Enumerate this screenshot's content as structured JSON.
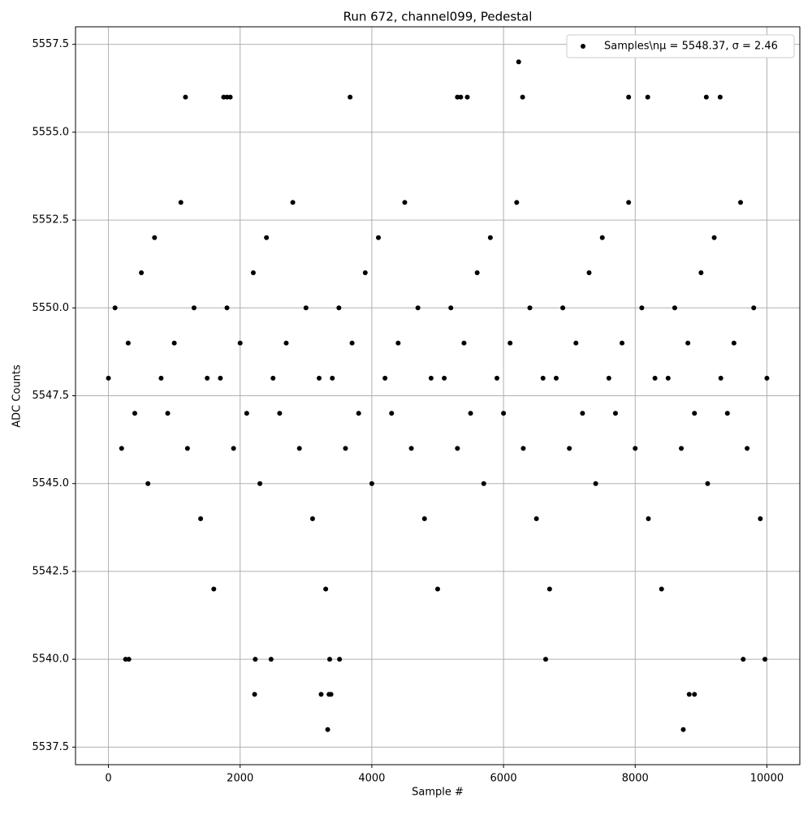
{
  "chart_data": {
    "type": "scatter",
    "title": "Run 672, channel099, Pedestal",
    "x_label": "Sample #",
    "y_label": "ADC Counts",
    "xlim": [
      -500,
      10500
    ],
    "ylim": [
      5537,
      5558
    ],
    "xticks": [
      0,
      2000,
      4000,
      6000,
      8000,
      10000
    ],
    "yticks": [
      5537.5,
      {
        "value": 5540,
        "label": "5540.0"
      },
      5542.5,
      {
        "value": 5545,
        "label": "5545.0"
      },
      5547.5,
      {
        "value": 5550,
        "label": "5550.0"
      },
      5552.5,
      {
        "value": 5555,
        "label": "5555.0"
      },
      5557.5
    ],
    "grid": true,
    "legend": "upper right",
    "series": [
      {
        "name": "Samples\\nμ = 5548.37, σ = 2.46",
        "color": "#000000",
        "x": [
          0,
          100,
          200,
          300,
          400,
          500,
          600,
          700,
          800,
          900,
          1000,
          1100,
          1200,
          1300,
          1400,
          1500,
          1600,
          1700,
          1800,
          1900,
          2000,
          2100,
          2200,
          2300,
          2400,
          2500,
          2600,
          2700,
          2800,
          2900,
          3000,
          3100,
          3200,
          3300,
          3400,
          3500,
          3600,
          3700,
          3800,
          3900,
          4000,
          4100,
          4200,
          4300,
          4400,
          4500,
          4600,
          4700,
          4800,
          4900,
          5000,
          5100,
          5200,
          5300,
          5400,
          5500,
          5600,
          5700,
          5800,
          5900,
          6000,
          6100,
          6200,
          6300,
          6400,
          6500,
          6600,
          6700,
          6800,
          6900,
          7000,
          7100,
          7200,
          7300,
          7400,
          7500,
          7600,
          7700,
          7800,
          7900,
          8000,
          8100,
          8200,
          8300,
          8400,
          8500,
          8600,
          8700,
          8800,
          8900,
          9000,
          9100,
          9200,
          9300,
          9400,
          9500,
          9600,
          9700,
          9800,
          9900,
          10000,
          1170,
          1750,
          1800,
          1850,
          3670,
          5300,
          5350,
          5450,
          6230,
          6290,
          7900,
          8190,
          9080,
          9290,
          2220,
          3230,
          3330,
          3350,
          3380,
          8730,
          8820,
          8900,
          2230,
          2470,
          260,
          310,
          3360,
          3510,
          6640,
          9640,
          9970
        ],
        "values": [
          5548,
          5550,
          5546,
          5549,
          5547,
          5551,
          5545,
          5552,
          5548,
          5547,
          5549,
          5553,
          5546,
          5550,
          5544,
          5548,
          5542,
          5548,
          5550,
          5546,
          5549,
          5547,
          5551,
          5545,
          5552,
          5548,
          5547,
          5549,
          5553,
          5546,
          5550,
          5544,
          5548,
          5542,
          5548,
          5550,
          5546,
          5549,
          5547,
          5551,
          5545,
          5552,
          5548,
          5547,
          5549,
          5553,
          5546,
          5550,
          5544,
          5548,
          5542,
          5548,
          5550,
          5546,
          5549,
          5547,
          5551,
          5545,
          5552,
          5548,
          5547,
          5549,
          5553,
          5546,
          5550,
          5544,
          5548,
          5542,
          5548,
          5550,
          5546,
          5549,
          5547,
          5551,
          5545,
          5552,
          5548,
          5547,
          5549,
          5553,
          5546,
          5550,
          5544,
          5548,
          5542,
          5548,
          5550,
          5546,
          5549,
          5547,
          5551,
          5545,
          5552,
          5548,
          5547,
          5549,
          5553,
          5546,
          5550,
          5544,
          5548,
          5556,
          5556,
          5556,
          5556,
          5556,
          5556,
          5556,
          5556,
          5557,
          5556,
          5556,
          5556,
          5556,
          5556,
          5539,
          5539,
          5538,
          5539,
          5539,
          5538,
          5539,
          5539,
          5540,
          5540,
          5540,
          5540,
          5540,
          5540,
          5540,
          5540,
          5540
        ]
      }
    ]
  }
}
